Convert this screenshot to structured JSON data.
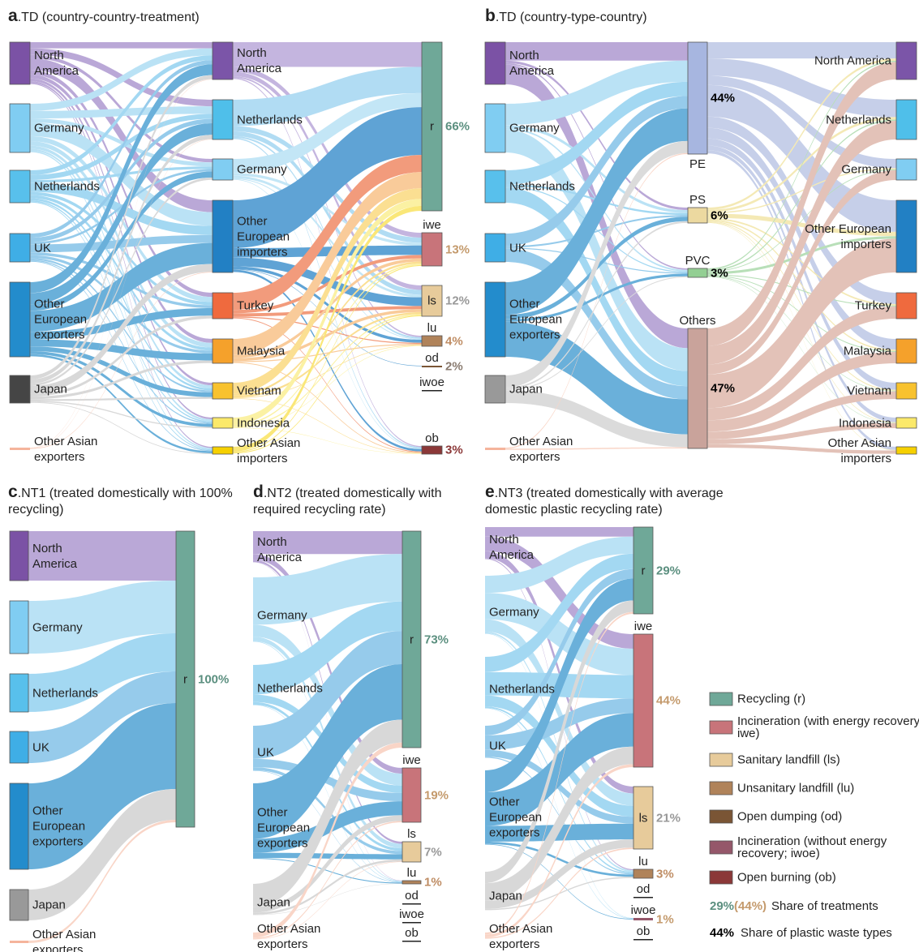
{
  "panels": [
    {
      "letter": "a",
      "title": ".TD (country-country-treatment)",
      "columns": [
        {
          "nodes": [
            {
              "label": "North America"
            },
            {
              "label": "Germany"
            },
            {
              "label": "Netherlands"
            },
            {
              "label": "UK"
            },
            {
              "label": "Other European exporters"
            },
            {
              "label": "Japan"
            },
            {
              "label": "Other Asian exporters"
            }
          ]
        },
        {
          "nodes": [
            {
              "label": "North America"
            },
            {
              "label": "Netherlands"
            },
            {
              "label": "Germany"
            },
            {
              "label": "Other European importers"
            },
            {
              "label": "Turkey"
            },
            {
              "label": "Malaysia"
            },
            {
              "label": "Vietnam"
            },
            {
              "label": "Indonesia"
            },
            {
              "label": "Other Asian importers"
            }
          ]
        },
        {
          "nodes": [
            {
              "label": "r",
              "share": "66%"
            },
            {
              "label": "iwe",
              "share": "13%"
            },
            {
              "label": "ls",
              "share": "12%"
            },
            {
              "label": "lu",
              "share": "4%"
            },
            {
              "label": "od",
              "share": "2%"
            },
            {
              "label": "iwoe"
            },
            {
              "label": "ob",
              "share": "3%"
            }
          ]
        }
      ]
    },
    {
      "letter": "b",
      "title": ".TD (country-type-country)",
      "columns": [
        {
          "nodes": [
            {
              "label": "North America"
            },
            {
              "label": "Germany"
            },
            {
              "label": "Netherlands"
            },
            {
              "label": "UK"
            },
            {
              "label": "Other European exporters"
            },
            {
              "label": "Japan"
            },
            {
              "label": "Other Asian exporters"
            }
          ]
        },
        {
          "nodes": [
            {
              "label": "PE",
              "share": "44%"
            },
            {
              "label": "PS",
              "share": "6%"
            },
            {
              "label": "PVC",
              "share": "3%"
            },
            {
              "label": "Others",
              "share": "47%"
            }
          ]
        },
        {
          "nodes": [
            {
              "label": "North America"
            },
            {
              "label": "Netherlands"
            },
            {
              "label": "Germany"
            },
            {
              "label": "Other European importers"
            },
            {
              "label": "Turkey"
            },
            {
              "label": "Malaysia"
            },
            {
              "label": "Vietnam"
            },
            {
              "label": "Indonesia"
            },
            {
              "label": "Other Asian importers"
            }
          ]
        }
      ]
    },
    {
      "letter": "c",
      "title": ".NT1 (treated domestically with 100% recycling)",
      "columns": [
        {
          "nodes": [
            {
              "label": "North America"
            },
            {
              "label": "Germany"
            },
            {
              "label": "Netherlands"
            },
            {
              "label": "UK"
            },
            {
              "label": "Other European exporters"
            },
            {
              "label": "Japan"
            },
            {
              "label": "Other Asian exporters"
            }
          ]
        },
        {
          "nodes": [
            {
              "label": "r",
              "share": "100%"
            }
          ]
        }
      ]
    },
    {
      "letter": "d",
      "title": ".NT2 (treated domestically with required recycling rate)",
      "columns": [
        {
          "nodes": [
            {
              "label": "North America"
            },
            {
              "label": "Germany"
            },
            {
              "label": "Netherlands"
            },
            {
              "label": "UK"
            },
            {
              "label": "Other European exporters"
            },
            {
              "label": "Japan"
            },
            {
              "label": "Other Asian exporters"
            }
          ]
        },
        {
          "nodes": [
            {
              "label": "r",
              "share": "73%"
            },
            {
              "label": "iwe",
              "share": "19%"
            },
            {
              "label": "ls",
              "share": "7%"
            },
            {
              "label": "lu",
              "share": "1%"
            },
            {
              "label": "od"
            },
            {
              "label": "iwoe"
            },
            {
              "label": "ob"
            }
          ]
        }
      ]
    },
    {
      "letter": "e",
      "title": ".NT3 (treated domestically with average domestic plastic recycling rate)",
      "columns": [
        {
          "nodes": [
            {
              "label": "North America"
            },
            {
              "label": "Germany"
            },
            {
              "label": "Netherlands"
            },
            {
              "label": "UK"
            },
            {
              "label": "Other European exporters"
            },
            {
              "label": "Japan"
            },
            {
              "label": "Other Asian exporters"
            }
          ]
        },
        {
          "nodes": [
            {
              "label": "r",
              "share": "29%"
            },
            {
              "label": "iwe",
              "share": "44%"
            },
            {
              "label": "ls",
              "share": "21%"
            },
            {
              "label": "lu",
              "share": "3%"
            },
            {
              "label": "od"
            },
            {
              "label": "iwoe",
              "share": "1%"
            },
            {
              "label": "ob"
            }
          ]
        }
      ]
    }
  ],
  "legend": {
    "items": [
      {
        "label": "Recycling (r)"
      },
      {
        "label": "Incineration (with energy recovery; iwe)"
      },
      {
        "label": "Sanitary landfill (ls)"
      },
      {
        "label": "Unsanitary landfill (lu)"
      },
      {
        "label": "Open dumping (od)"
      },
      {
        "label": "Incineration (without energy recovery; iwoe)"
      },
      {
        "label": "Open burning (ob)"
      }
    ],
    "treatment_share": {
      "example": [
        "29%",
        "(44%)"
      ],
      "label": "Share of treatments"
    },
    "type_share": {
      "example": "44%",
      "label": "Share of plastic waste types"
    }
  }
}
